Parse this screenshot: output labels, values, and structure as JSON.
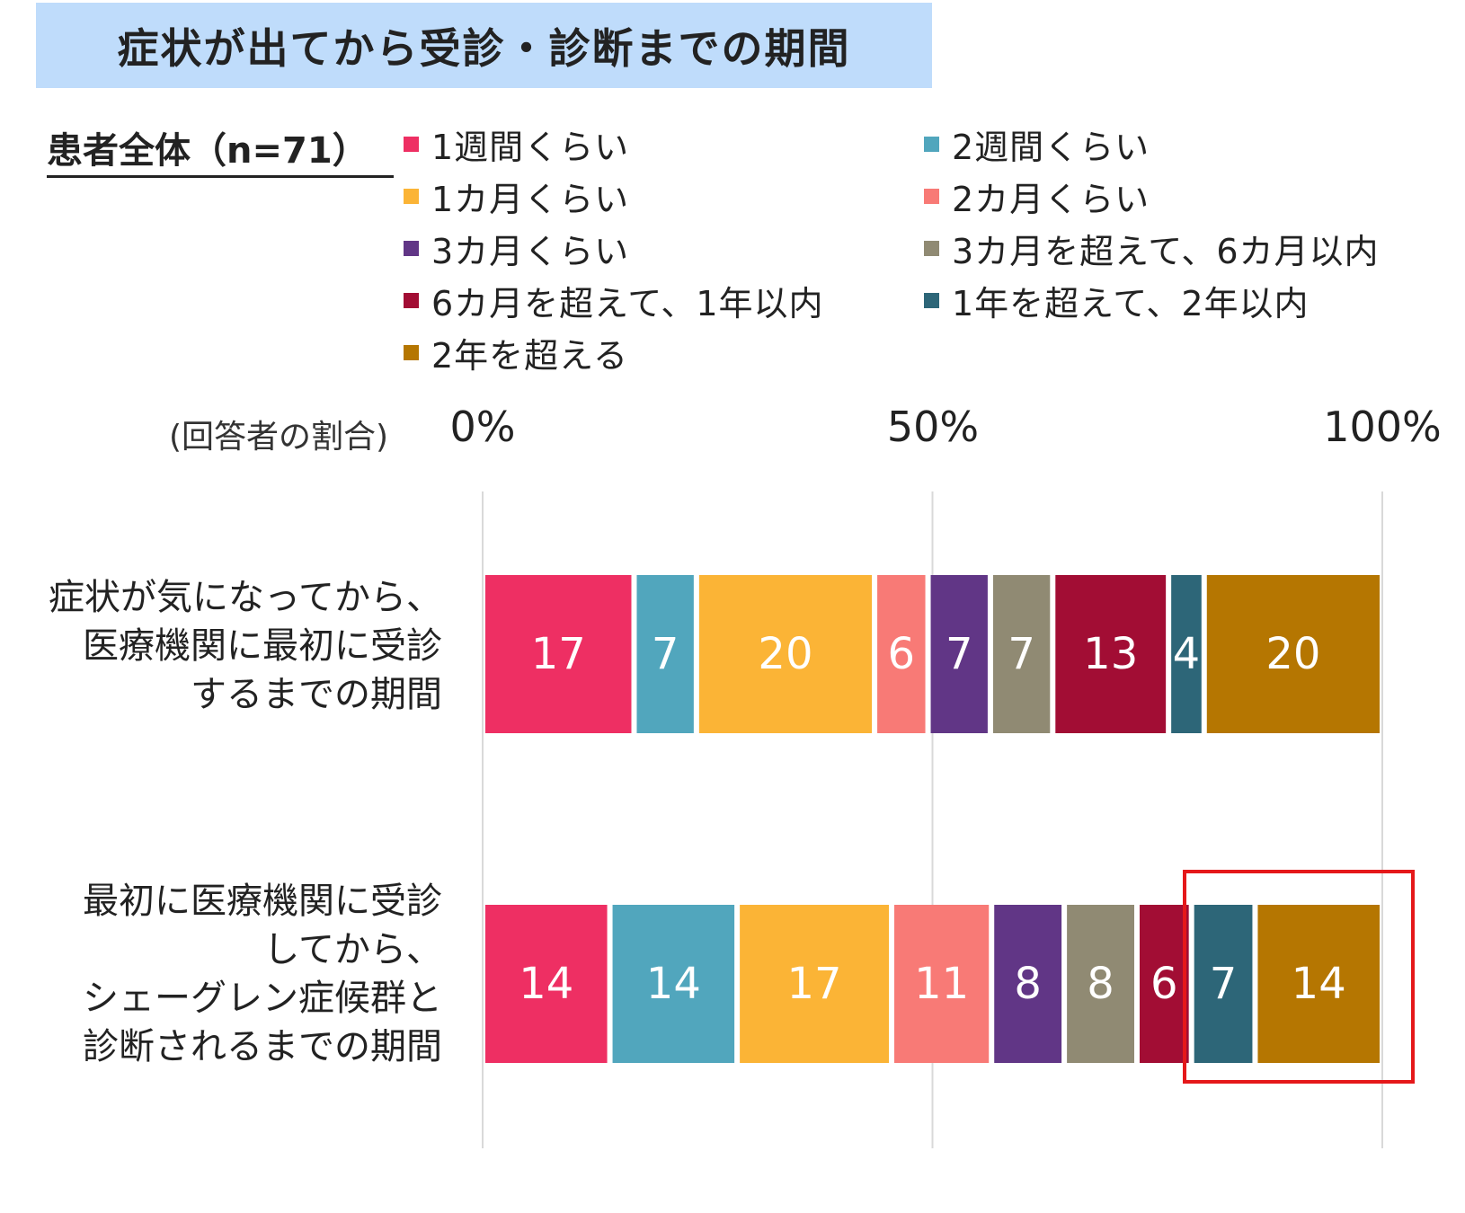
{
  "title": "症状が出てから受診・診断までの期間",
  "subset_label": "患者全体（n=71）",
  "colors": {
    "title_bg": "#bfdcfb",
    "gridline": "#d9d9d9",
    "highlight": "#e5181a"
  },
  "chart_data": {
    "type": "bar",
    "orientation": "horizontal",
    "stacked": true,
    "percent_stacked": true,
    "title": "症状が出てから受診・診断までの期間",
    "xlabel": "(回答者の割合)",
    "xlim": [
      0,
      100
    ],
    "x_ticks": [
      "0%",
      "50%",
      "100%"
    ],
    "grid": true,
    "legend_position": "top",
    "categories": [
      "症状が気になってから、医療機関に最初に受診するまでの期間",
      "最初に医療機関に受診してから、シェーグレン症候群と診断されるまでの期間"
    ],
    "category_display_lines": [
      [
        "症状が気になってから、",
        "医療機関に最初に受診",
        "するまでの期間"
      ],
      [
        "最初に医療機関に受診",
        "してから、",
        "シェーグレン症候群と",
        "診断されるまでの期間"
      ]
    ],
    "series": [
      {
        "name": "1週間くらい",
        "color": "#ee2f63",
        "values": [
          17,
          14
        ]
      },
      {
        "name": "2週間くらい",
        "color": "#51a6bd",
        "values": [
          7,
          14
        ]
      },
      {
        "name": "1カ月くらい",
        "color": "#fbb436",
        "values": [
          20,
          17
        ]
      },
      {
        "name": "2カ月くらい",
        "color": "#f87a76",
        "values": [
          6,
          11
        ]
      },
      {
        "name": "3カ月くらい",
        "color": "#613686",
        "values": [
          7,
          8
        ]
      },
      {
        "name": "3カ月を超えて、6カ月以内",
        "color": "#908a73",
        "values": [
          7,
          8
        ]
      },
      {
        "name": "6カ月を超えて、1年以内",
        "color": "#a20d34",
        "values": [
          13,
          6
        ]
      },
      {
        "name": "1年を超えて、2年以内",
        "color": "#2d6678",
        "values": [
          4,
          7
        ]
      },
      {
        "name": "2年を超える",
        "color": "#b57601",
        "values": [
          20,
          14
        ]
      }
    ],
    "highlight_series": [
      "1年を超えて、2年以内",
      "2年を超える"
    ],
    "highlight_category": 1
  }
}
